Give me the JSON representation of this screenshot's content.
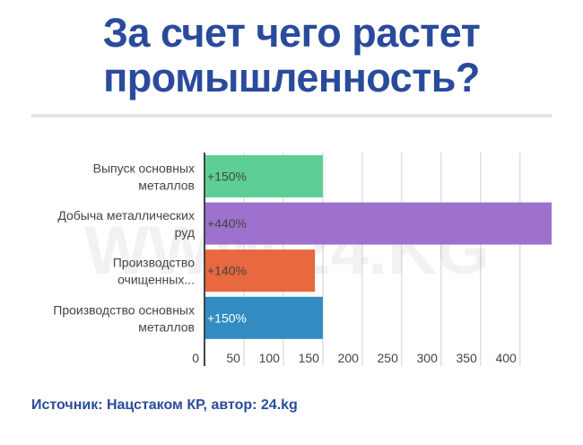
{
  "title_line1": "За счет чего растет",
  "title_line2": "промышленность?",
  "watermark": "WWW.24.KG",
  "source": "Источник: Нацстаком КР, автор: 24.kg",
  "chart_data": {
    "type": "bar",
    "orientation": "horizontal",
    "categories": [
      [
        "Выпуск основных",
        "металлов"
      ],
      [
        "Добыча металлических",
        "руд"
      ],
      [
        "Производство",
        "очищенных..."
      ],
      [
        "Производство основных",
        "металлов"
      ]
    ],
    "values": [
      150,
      440,
      140,
      150
    ],
    "data_labels": [
      "+150%",
      "+440%",
      "+140%",
      "+150%"
    ],
    "colors": [
      "#5dcf94",
      "#9d71cd",
      "#e8683f",
      "#328cc1"
    ],
    "label_colors": [
      "#444444",
      "#444444",
      "#444444",
      "#ffffff"
    ],
    "xticks": [
      0,
      50,
      100,
      150,
      200,
      250,
      300,
      350,
      400
    ],
    "xlim": [
      0,
      440
    ],
    "grid": true,
    "xlabel": "",
    "ylabel": ""
  }
}
